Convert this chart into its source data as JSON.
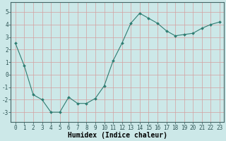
{
  "x": [
    0,
    1,
    2,
    3,
    4,
    5,
    6,
    7,
    8,
    9,
    10,
    11,
    12,
    13,
    14,
    15,
    16,
    17,
    18,
    19,
    20,
    21,
    22,
    23
  ],
  "y": [
    2.5,
    0.7,
    -1.6,
    -2.0,
    -3.0,
    -3.0,
    -1.8,
    -2.3,
    -2.3,
    -1.9,
    -0.9,
    1.1,
    2.5,
    4.1,
    4.9,
    4.5,
    4.1,
    3.5,
    3.1,
    3.2,
    3.3,
    3.7,
    4.0,
    4.2
  ],
  "line_color": "#2e7d72",
  "marker": "D",
  "marker_size": 2.0,
  "bg_color": "#cce8e8",
  "grid_color": "#b8d4d4",
  "xlabel": "Humidex (Indice chaleur)",
  "xlim": [
    -0.5,
    23.5
  ],
  "ylim": [
    -3.8,
    5.8
  ],
  "yticks": [
    -3,
    -2,
    -1,
    0,
    1,
    2,
    3,
    4,
    5
  ],
  "xticks": [
    0,
    1,
    2,
    3,
    4,
    5,
    6,
    7,
    8,
    9,
    10,
    11,
    12,
    13,
    14,
    15,
    16,
    17,
    18,
    19,
    20,
    21,
    22,
    23
  ],
  "tick_fontsize": 5.5,
  "xlabel_fontsize": 7.0,
  "linewidth": 0.8
}
